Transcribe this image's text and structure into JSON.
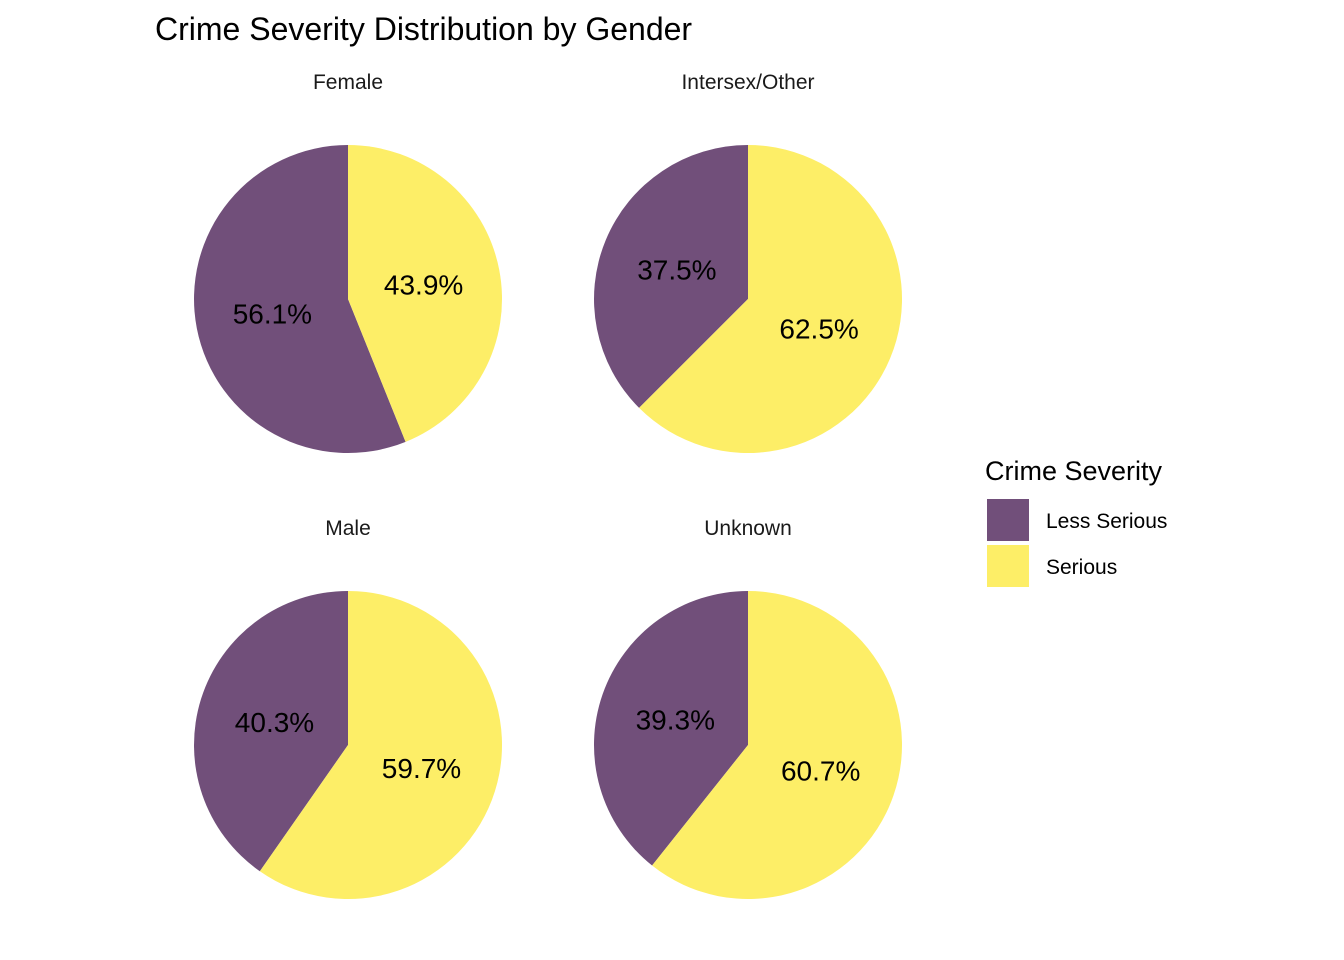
{
  "chart_data": {
    "type": "pie",
    "title": "Crime Severity Distribution by Gender",
    "legend": {
      "title": "Crime Severity",
      "position": "right",
      "entries": [
        "Less Serious",
        "Serious"
      ]
    },
    "colors": {
      "Less Serious": "#714F7A",
      "Serious": "#FDEE67"
    },
    "facets": [
      {
        "label": "Female",
        "slices": [
          {
            "category": "Less Serious",
            "value": 56.1,
            "label": "56.1%"
          },
          {
            "category": "Serious",
            "value": 43.9,
            "label": "43.9%"
          }
        ]
      },
      {
        "label": "Intersex/Other",
        "slices": [
          {
            "category": "Less Serious",
            "value": 37.5,
            "label": "37.5%"
          },
          {
            "category": "Serious",
            "value": 62.5,
            "label": "62.5%"
          }
        ]
      },
      {
        "label": "Male",
        "slices": [
          {
            "category": "Less Serious",
            "value": 40.3,
            "label": "40.3%"
          },
          {
            "category": "Serious",
            "value": 59.7,
            "label": "59.7%"
          }
        ]
      },
      {
        "label": "Unknown",
        "slices": [
          {
            "category": "Less Serious",
            "value": 39.3,
            "label": "39.3%"
          },
          {
            "category": "Serious",
            "value": 60.7,
            "label": "60.7%"
          }
        ]
      }
    ]
  }
}
